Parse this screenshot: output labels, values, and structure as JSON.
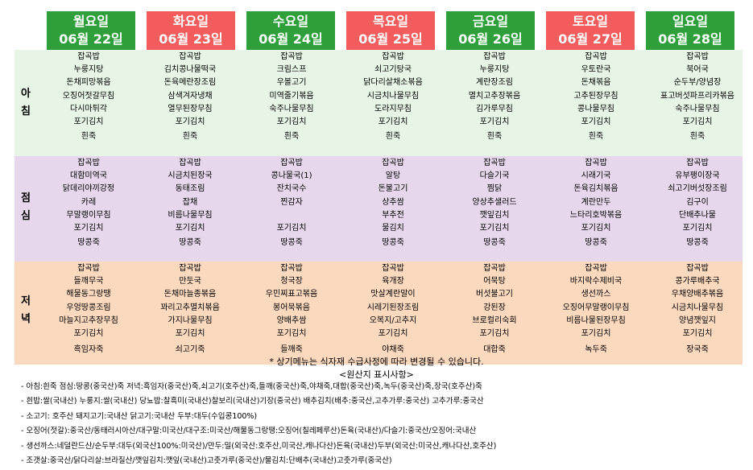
{
  "days": [
    {
      "day": "월요일",
      "date": "06월  22일",
      "color": "green",
      "breakfast": [
        "잡곡밥",
        "누룽지탕",
        "돈채피망볶음",
        "오징어젓갈무침",
        "다시마튀각",
        "포기김치",
        "흰죽"
      ],
      "lunch": [
        "잡곡밥",
        "대함미역국",
        "닭데리야끼강정",
        "카레",
        "무말랭이무침",
        "포기김치",
        "땅콩죽"
      ],
      "dinner": [
        "잡곡밥",
        "들깨무국",
        "해물동그랑땡",
        "우엉땅콩조림",
        "마늘지고추장무침",
        "포기김치",
        "흑임자죽"
      ]
    },
    {
      "day": "화요일",
      "date": "06월  23일",
      "color": "red",
      "breakfast": [
        "잡곡밥",
        "김치콩나물떡국",
        "돈육메란장조림",
        "삼색겨자냉채",
        "열무된장무침",
        "포기김치",
        "흰죽"
      ],
      "lunch": [
        "잡곡밥",
        "시금치된장국",
        "동태조림",
        "잡채",
        "비름나물무침",
        "포기김치",
        "땅콩죽"
      ],
      "dinner": [
        "잡곡밥",
        "만둣국",
        "돈채마늘종볶음",
        "꽈리고추멸치볶음",
        "가지나물무침",
        "포기김치",
        "쇠고기죽"
      ]
    },
    {
      "day": "수요일",
      "date": "06월  24일",
      "color": "green",
      "breakfast": [
        "잡곡밥",
        "크림스프",
        "우볼고기",
        "미역줄기볶음",
        "숙주나물무침",
        "포기김치",
        "흰죽"
      ],
      "lunch": [
        "잡곡밥",
        "콩나물국(1)",
        "잔치국수",
        "찐감자",
        "",
        "포기김치",
        "땅콩죽"
      ],
      "dinner": [
        "잡곡밥",
        "청국장",
        "우민찌표고볶음",
        "봉어묵볶음",
        "양배추쌈",
        "포기김치",
        "들깨죽"
      ]
    },
    {
      "day": "목요일",
      "date": "06월  25일",
      "color": "red",
      "breakfast": [
        "잡곡밥",
        "쇠고기탕국",
        "닭다리살채소볶음",
        "시금치나물무침",
        "도라지무침",
        "포기김치",
        "흰죽"
      ],
      "lunch": [
        "잡곡밥",
        "알탕",
        "돈불고기",
        "상추쌈",
        "부추전",
        "물김치",
        "땅콩죽"
      ],
      "dinner": [
        "잡곡밥",
        "육개장",
        "맛살계란말이",
        "시레기된장조림",
        "오복지/고추지",
        "포기김치",
        "야채죽"
      ]
    },
    {
      "day": "금요일",
      "date": "06월  26일",
      "color": "green",
      "breakfast": [
        "잡곡밥",
        "누룽지탕",
        "계란장조림",
        "멸치고추장볶음",
        "김가루무침",
        "포기김치",
        "흰죽"
      ],
      "lunch": [
        "잡곡밥",
        "다슬기국",
        "찜닭",
        "양상추샐러드",
        "깻잎김치",
        "포기김치",
        "땅콩죽"
      ],
      "dinner": [
        "잡곡밥",
        "어묵탕",
        "버섯불고기",
        "강된장",
        "브로컬리숙회",
        "포기김치",
        "대합죽"
      ]
    },
    {
      "day": "토요일",
      "date": "06월  27일",
      "color": "red",
      "breakfast": [
        "잡곡밥",
        "우토란국",
        "돈채볶음",
        "고추된장무침",
        "콩나물무침",
        "포기김치",
        "흰죽"
      ],
      "lunch": [
        "잡곡밥",
        "시래기국",
        "돈육김치볶음",
        "계란만두",
        "느타리호박볶음",
        "포기김치",
        "땅콩죽"
      ],
      "dinner": [
        "잡곡밥",
        "바지락수제비국",
        "생선까스",
        "오징어무말랭이무침",
        "비름나물된장무침",
        "포기김치",
        "녹두죽"
      ]
    },
    {
      "day": "일요일",
      "date": "06월  28일",
      "color": "green",
      "breakfast": [
        "잡곡밥",
        "북어국",
        "순두부/양념장",
        "표고버섯파프리카볶음",
        "숙주나물무침",
        "포기김치",
        "흰죽"
      ],
      "lunch": [
        "잡곡밥",
        "유부팽이장국",
        "쇠고기버섯장조림",
        "김구이",
        "단배추나물",
        "포기김치",
        "땅콩죽"
      ],
      "dinner": [
        "잡곡밥",
        "콩가루배추국",
        "우채양배추볶음",
        "시금치나물무침",
        "양념깻잎지",
        "포기김치",
        "장국죽"
      ]
    }
  ],
  "meals": {
    "breakfast": "아\n침",
    "lunch": "점\n심",
    "dinner": "저\n녁"
  },
  "colors": {
    "green": "#2e9f3b",
    "red": "#f25c5c",
    "breakfast_bg": "#e7f5e6",
    "lunch_bg": "#e6d7ec",
    "dinner_bg": "#fbd9bf"
  },
  "note": "* 상기메뉴는 식자재 수급사정에 따라 변경될 수 있습니다.",
  "origin_title": "<원산지 표시사항>",
  "origins": [
    "- 아침:흰죽 점심:땅콩(중국산)죽 저녁:흑임자(중국산)죽,쇠고기(호주산)죽,들깨(중국산)죽,야채죽,대합(중국산)죽,녹두(중국산)죽,장국(호주산)죽",
    "- 흰밥:쌀(국내산) 누룽지:쌀(국내산) 당뇨밥:찰흑미(국내산)찰보리(국내산)기장(중국산) 배추김치(배추:중국산,고추가루:중국산) 고추가루:중국산",
    "- 소고기: 호주산   돼지고기:국내산   닭고기:국내산   두부:대두(수입콩100%)",
    "- 오징어(젓갈):중국산/동태러시아산/대구말:미국산/대구조:미국산/해물동그랑땡:오징어(칠레페루산)돈육(국내산)/다슬기:중국산/오징어:국내산",
    "- 생선까스:네덜란드산/순두부:대두(외국산100%:미국산)/만두:밀(외국산:호주산,미국산,캐나다산)돈육(국내산)두부(외국산:미국산,캐나다산,호주산)",
    "- 조갯살:중국산/닭다리살:브라질산/깻잎김치:깻잎(국내산)고춧가루(중국산)/물김치:단배추(국내산)고춧가루(중국산)"
  ]
}
